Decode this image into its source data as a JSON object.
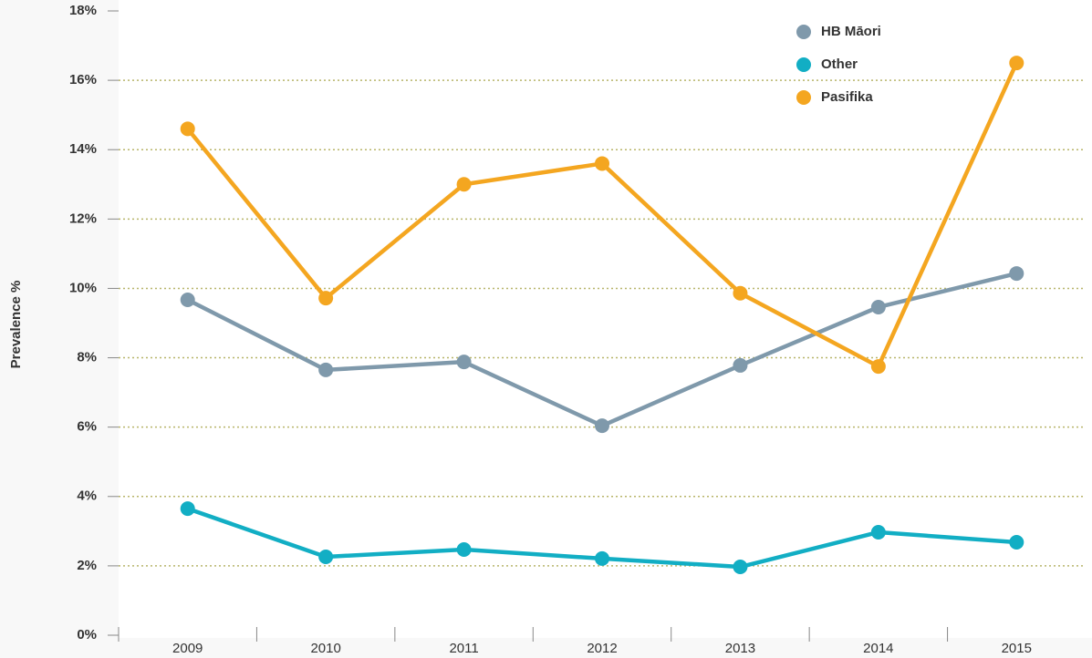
{
  "chart_data": {
    "type": "line",
    "y_axis_label": "Prevalence %",
    "categories": [
      "2009",
      "2010",
      "2011",
      "2012",
      "2013",
      "2014",
      "2015"
    ],
    "series": [
      {
        "name": "HB Māori",
        "color": "#7f99ab",
        "values": [
          9.67,
          7.65,
          7.88,
          6.04,
          7.78,
          9.46,
          10.43
        ]
      },
      {
        "name": "Other",
        "color": "#12aec4",
        "values": [
          3.65,
          2.26,
          2.47,
          2.21,
          1.97,
          2.97,
          2.68
        ]
      },
      {
        "name": "Pasifika",
        "color": "#f4a620",
        "values": [
          14.6,
          9.72,
          13.0,
          13.6,
          9.86,
          7.75,
          16.5
        ]
      }
    ],
    "ylim": [
      0,
      18
    ],
    "yticks": [
      {
        "value": 0,
        "label": "0%"
      },
      {
        "value": 2,
        "label": "2%"
      },
      {
        "value": 4,
        "label": "4%"
      },
      {
        "value": 6,
        "label": "6%"
      },
      {
        "value": 8,
        "label": "8%"
      },
      {
        "value": 10,
        "label": "10%"
      },
      {
        "value": 12,
        "label": "12%"
      },
      {
        "value": 14,
        "label": "14%"
      },
      {
        "value": 16,
        "label": "16%"
      },
      {
        "value": 18,
        "label": "18%"
      }
    ],
    "grid": true,
    "legend": "top-right"
  }
}
